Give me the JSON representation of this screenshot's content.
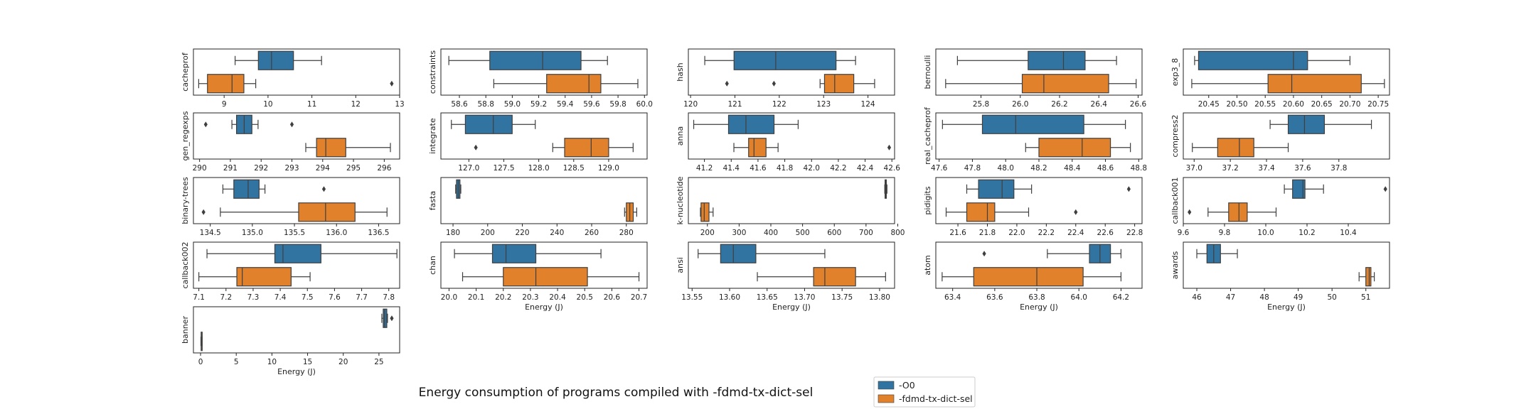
{
  "figure": {
    "title": "Energy consumption of programs compiled with -fdmd-tx-dict-sel",
    "colors": {
      "O0": "#3274a1",
      "sel": "#e1812c",
      "line": "#3f3f3f",
      "axis": "#222222"
    }
  },
  "legend": {
    "items": [
      "-O0",
      "-fdmd-tx-dict-sel"
    ]
  },
  "chart_data": [
    {
      "type": "box",
      "row": 0,
      "col": 0,
      "ylabel": "cacheprof",
      "xlabel": "",
      "xlim": [
        8.3,
        13.0
      ],
      "ticks": [
        9,
        10,
        11,
        12,
        13
      ],
      "series": [
        {
          "name": "-O0",
          "min": 9.25,
          "q1": 9.78,
          "median": 10.08,
          "q3": 10.58,
          "max": 11.22,
          "outliers": []
        },
        {
          "name": "-fdmd-tx-dict-sel",
          "min": 8.42,
          "q1": 8.62,
          "median": 9.18,
          "q3": 9.45,
          "max": 9.72,
          "outliers": [
            12.82
          ]
        }
      ]
    },
    {
      "type": "box",
      "row": 0,
      "col": 1,
      "ylabel": "constraints",
      "xlabel": "",
      "xlim": [
        58.46,
        60.02
      ],
      "ticks": [
        58.6,
        58.8,
        59.0,
        59.2,
        59.4,
        59.6,
        59.8,
        60.0
      ],
      "series": [
        {
          "name": "-O0",
          "min": 58.52,
          "q1": 58.83,
          "median": 59.23,
          "q3": 59.52,
          "max": 59.72,
          "outliers": []
        },
        {
          "name": "-fdmd-tx-dict-sel",
          "min": 58.86,
          "q1": 59.26,
          "median": 59.58,
          "q3": 59.67,
          "max": 59.95,
          "outliers": []
        }
      ]
    },
    {
      "type": "box",
      "row": 0,
      "col": 2,
      "ylabel": "hash",
      "xlabel": "",
      "xlim": [
        119.95,
        124.6
      ],
      "ticks": [
        120,
        121,
        122,
        123,
        124
      ],
      "series": [
        {
          "name": "-O0",
          "min": 120.32,
          "q1": 120.98,
          "median": 121.92,
          "q3": 123.28,
          "max": 123.72,
          "outliers": []
        },
        {
          "name": "-fdmd-tx-dict-sel",
          "min": 122.92,
          "q1": 123.02,
          "median": 123.25,
          "q3": 123.68,
          "max": 124.15,
          "outliers": [
            120.82,
            121.88
          ]
        }
      ]
    },
    {
      "type": "box",
      "row": 0,
      "col": 3,
      "ylabel": "bernoulli",
      "xlabel": "",
      "xlim": [
        25.57,
        26.62
      ],
      "ticks": [
        25.8,
        26.0,
        26.2,
        26.4,
        26.6
      ],
      "series": [
        {
          "name": "-O0",
          "min": 25.68,
          "q1": 26.04,
          "median": 26.22,
          "q3": 26.33,
          "max": 26.49,
          "outliers": []
        },
        {
          "name": "-fdmd-tx-dict-sel",
          "min": 25.62,
          "q1": 26.01,
          "median": 26.12,
          "q3": 26.45,
          "max": 26.59,
          "outliers": []
        }
      ]
    },
    {
      "type": "box",
      "row": 0,
      "col": 4,
      "ylabel": "exp3_8",
      "xlabel": "",
      "xlim": [
        20.405,
        20.77
      ],
      "ticks": [
        20.45,
        20.5,
        20.55,
        20.6,
        20.65,
        20.7,
        20.75
      ],
      "series": [
        {
          "name": "-O0",
          "min": 20.425,
          "q1": 20.432,
          "median": 20.6,
          "q3": 20.625,
          "max": 20.7,
          "outliers": []
        },
        {
          "name": "-fdmd-tx-dict-sel",
          "min": 20.42,
          "q1": 20.555,
          "median": 20.597,
          "q3": 20.72,
          "max": 20.761,
          "outliers": []
        }
      ]
    },
    {
      "type": "box",
      "row": 1,
      "col": 0,
      "ylabel": "gen_regexps",
      "xlabel": "",
      "xlim": [
        289.8,
        296.5
      ],
      "ticks": [
        290,
        291,
        292,
        293,
        294,
        295,
        296
      ],
      "series": [
        {
          "name": "-O0",
          "min": 291.05,
          "q1": 291.2,
          "median": 291.45,
          "q3": 291.7,
          "max": 291.9,
          "outliers": [
            290.2,
            293.0
          ]
        },
        {
          "name": "-fdmd-tx-dict-sel",
          "min": 293.45,
          "q1": 293.8,
          "median": 294.1,
          "q3": 294.75,
          "max": 296.2,
          "outliers": []
        }
      ]
    },
    {
      "type": "box",
      "row": 1,
      "col": 1,
      "ylabel": "integrate",
      "xlabel": "",
      "xlim": [
        126.6,
        129.55
      ],
      "ticks": [
        127.0,
        127.5,
        128.0,
        128.5,
        129.0
      ],
      "series": [
        {
          "name": "-O0",
          "min": 126.75,
          "q1": 126.95,
          "median": 127.35,
          "q3": 127.62,
          "max": 127.95,
          "outliers": []
        },
        {
          "name": "-fdmd-tx-dict-sel",
          "min": 128.2,
          "q1": 128.37,
          "median": 128.75,
          "q3": 129.0,
          "max": 129.35,
          "outliers": [
            127.1
          ]
        }
      ]
    },
    {
      "type": "box",
      "row": 1,
      "col": 2,
      "ylabel": "anna",
      "xlabel": "",
      "xlim": [
        41.08,
        42.62
      ],
      "ticks": [
        41.2,
        41.4,
        41.6,
        41.8,
        42.0,
        42.2,
        42.4,
        42.6
      ],
      "series": [
        {
          "name": "-O0",
          "min": 41.12,
          "q1": 41.38,
          "median": 41.51,
          "q3": 41.72,
          "max": 41.9,
          "outliers": []
        },
        {
          "name": "-fdmd-tx-dict-sel",
          "min": 41.42,
          "q1": 41.53,
          "median": 41.57,
          "q3": 41.66,
          "max": 41.75,
          "outliers": [
            42.58
          ]
        }
      ]
    },
    {
      "type": "box",
      "row": 1,
      "col": 3,
      "ylabel": "real_cacheprof",
      "xlabel": "",
      "xlim": [
        47.58,
        48.82
      ],
      "ticks": [
        47.6,
        47.8,
        48.0,
        48.2,
        48.4,
        48.6,
        48.8
      ],
      "series": [
        {
          "name": "-O0",
          "min": 47.62,
          "q1": 47.86,
          "median": 48.06,
          "q3": 48.47,
          "max": 48.72,
          "outliers": []
        },
        {
          "name": "-fdmd-tx-dict-sel",
          "min": 48.12,
          "q1": 48.2,
          "median": 48.46,
          "q3": 48.63,
          "max": 48.75,
          "outliers": []
        }
      ]
    },
    {
      "type": "box",
      "row": 1,
      "col": 4,
      "ylabel": "compress2",
      "xlabel": "",
      "xlim": [
        36.94,
        38.08
      ],
      "ticks": [
        37.0,
        37.2,
        37.4,
        37.6,
        37.8
      ],
      "series": [
        {
          "name": "-O0",
          "min": 37.42,
          "q1": 37.52,
          "median": 37.61,
          "q3": 37.72,
          "max": 37.98,
          "outliers": []
        },
        {
          "name": "-fdmd-tx-dict-sel",
          "min": 36.99,
          "q1": 37.13,
          "median": 37.25,
          "q3": 37.33,
          "max": 37.52,
          "outliers": []
        }
      ]
    },
    {
      "type": "box",
      "row": 2,
      "col": 0,
      "ylabel": "binary-trees",
      "xlabel": "",
      "xlim": [
        134.3,
        136.75
      ],
      "ticks": [
        134.5,
        135.0,
        135.5,
        136.0,
        136.5
      ],
      "series": [
        {
          "name": "-O0",
          "min": 134.65,
          "q1": 134.78,
          "median": 134.95,
          "q3": 135.08,
          "max": 135.15,
          "outliers": [
            135.85
          ]
        },
        {
          "name": "-fdmd-tx-dict-sel",
          "min": 134.62,
          "q1": 135.55,
          "median": 135.87,
          "q3": 136.22,
          "max": 136.6,
          "outliers": [
            134.42
          ]
        }
      ]
    },
    {
      "type": "box",
      "row": 2,
      "col": 1,
      "ylabel": "fasta",
      "xlabel": "",
      "xlim": [
        173,
        292
      ],
      "ticks": [
        180,
        200,
        220,
        240,
        260,
        280
      ],
      "series": [
        {
          "name": "-O0",
          "min": 181.5,
          "q1": 182,
          "median": 183,
          "q3": 184,
          "max": 184.5,
          "outliers": []
        },
        {
          "name": "-fdmd-tx-dict-sel",
          "min": 279,
          "q1": 280,
          "median": 282,
          "q3": 284,
          "max": 286,
          "outliers": []
        }
      ]
    },
    {
      "type": "box",
      "row": 2,
      "col": 2,
      "ylabel": "k-nucleotide",
      "xlabel": "",
      "xlim": [
        140,
        790
      ],
      "ticks": [
        200,
        300,
        400,
        500,
        600,
        700,
        800
      ],
      "series": [
        {
          "name": "-O0",
          "min": 759,
          "q1": 760,
          "median": 762,
          "q3": 764,
          "max": 766,
          "outliers": []
        },
        {
          "name": "-fdmd-tx-dict-sel",
          "min": 178,
          "q1": 180,
          "median": 190,
          "q3": 205,
          "max": 218,
          "outliers": []
        }
      ]
    },
    {
      "type": "box",
      "row": 2,
      "col": 3,
      "ylabel": "pidigits",
      "xlabel": "",
      "xlim": [
        21.45,
        22.85
      ],
      "ticks": [
        21.6,
        21.8,
        22.0,
        22.2,
        22.4,
        22.6,
        22.8
      ],
      "series": [
        {
          "name": "-O0",
          "min": 21.66,
          "q1": 21.74,
          "median": 21.9,
          "q3": 21.98,
          "max": 22.1,
          "outliers": [
            22.76
          ]
        },
        {
          "name": "-fdmd-tx-dict-sel",
          "min": 21.52,
          "q1": 21.66,
          "median": 21.8,
          "q3": 21.85,
          "max": 22.08,
          "outliers": [
            22.4
          ]
        }
      ]
    },
    {
      "type": "box",
      "row": 2,
      "col": 4,
      "ylabel": "callback001",
      "xlabel": "",
      "xlim": [
        9.6,
        10.6
      ],
      "ticks": [
        9.6,
        9.8,
        10.0,
        10.2,
        10.4
      ],
      "series": [
        {
          "name": "-O0",
          "min": 10.09,
          "q1": 10.13,
          "median": 10.18,
          "q3": 10.19,
          "max": 10.28,
          "outliers": [
            10.58
          ]
        },
        {
          "name": "-fdmd-tx-dict-sel",
          "min": 9.72,
          "q1": 9.82,
          "median": 9.87,
          "q3": 9.91,
          "max": 10.05,
          "outliers": [
            9.63
          ]
        }
      ]
    },
    {
      "type": "box",
      "row": 3,
      "col": 0,
      "ylabel": "callback002",
      "xlabel": "",
      "xlim": [
        7.08,
        7.84
      ],
      "ticks": [
        7.1,
        7.2,
        7.3,
        7.4,
        7.5,
        7.6,
        7.7,
        7.8
      ],
      "series": [
        {
          "name": "-O0",
          "min": 7.13,
          "q1": 7.38,
          "median": 7.41,
          "q3": 7.55,
          "max": 7.83,
          "outliers": []
        },
        {
          "name": "-fdmd-tx-dict-sel",
          "min": 7.1,
          "q1": 7.24,
          "median": 7.26,
          "q3": 7.44,
          "max": 7.51,
          "outliers": []
        }
      ]
    },
    {
      "type": "box",
      "row": 3,
      "col": 1,
      "ylabel": "chan",
      "xlabel": "Energy (J)",
      "xlim": [
        19.97,
        20.73
      ],
      "ticks": [
        20.0,
        20.1,
        20.2,
        20.3,
        20.4,
        20.5,
        20.6,
        20.7
      ],
      "series": [
        {
          "name": "-O0",
          "min": 20.02,
          "q1": 20.16,
          "median": 20.21,
          "q3": 20.32,
          "max": 20.56,
          "outliers": []
        },
        {
          "name": "-fdmd-tx-dict-sel",
          "min": 20.05,
          "q1": 20.2,
          "median": 20.32,
          "q3": 20.51,
          "max": 20.7,
          "outliers": []
        }
      ]
    },
    {
      "type": "box",
      "row": 3,
      "col": 2,
      "ylabel": "ansi",
      "xlabel": "Energy (J)",
      "xlim": [
        13.545,
        13.82
      ],
      "ticks": [
        13.55,
        13.6,
        13.65,
        13.7,
        13.75,
        13.8
      ],
      "series": [
        {
          "name": "-O0",
          "min": 13.558,
          "q1": 13.588,
          "median": 13.605,
          "q3": 13.635,
          "max": 13.727,
          "outliers": []
        },
        {
          "name": "-fdmd-tx-dict-sel",
          "min": 13.637,
          "q1": 13.712,
          "median": 13.727,
          "q3": 13.768,
          "max": 13.808,
          "outliers": []
        }
      ]
    },
    {
      "type": "box",
      "row": 3,
      "col": 3,
      "ylabel": "atom",
      "xlabel": "Energy (J)",
      "xlim": [
        63.32,
        64.3
      ],
      "ticks": [
        63.4,
        63.6,
        63.8,
        64.0,
        64.2
      ],
      "series": [
        {
          "name": "-O0",
          "min": 63.85,
          "q1": 64.05,
          "median": 64.1,
          "q3": 64.15,
          "max": 64.2,
          "outliers": [
            63.55
          ]
        },
        {
          "name": "-fdmd-tx-dict-sel",
          "min": 63.35,
          "q1": 63.5,
          "median": 63.8,
          "q3": 64.02,
          "max": 64.2,
          "outliers": []
        }
      ]
    },
    {
      "type": "box",
      "row": 3,
      "col": 4,
      "ylabel": "awards",
      "xlabel": "Energy (J)",
      "xlim": [
        45.6,
        51.7
      ],
      "ticks": [
        46,
        47,
        48,
        49,
        50,
        51
      ],
      "series": [
        {
          "name": "-O0",
          "min": 46.0,
          "q1": 46.3,
          "median": 46.5,
          "q3": 46.7,
          "max": 47.2,
          "outliers": []
        },
        {
          "name": "-fdmd-tx-dict-sel",
          "min": 50.8,
          "q1": 51.0,
          "median": 51.1,
          "q3": 51.15,
          "max": 51.25,
          "outliers": []
        }
      ]
    },
    {
      "type": "box",
      "row": 4,
      "col": 0,
      "ylabel": "banner",
      "xlabel": "Energy (J)",
      "xlim": [
        -1.0,
        27.9
      ],
      "ticks": [
        0,
        5,
        10,
        15,
        20,
        25
      ],
      "series": [
        {
          "name": "-O0",
          "min": 25.4,
          "q1": 25.6,
          "median": 25.8,
          "q3": 26.1,
          "max": 26.2,
          "outliers": [
            26.8
          ]
        },
        {
          "name": "-fdmd-tx-dict-sel",
          "min": 0.05,
          "q1": 0.08,
          "median": 0.12,
          "q3": 0.18,
          "max": 0.22,
          "outliers": []
        }
      ]
    }
  ]
}
